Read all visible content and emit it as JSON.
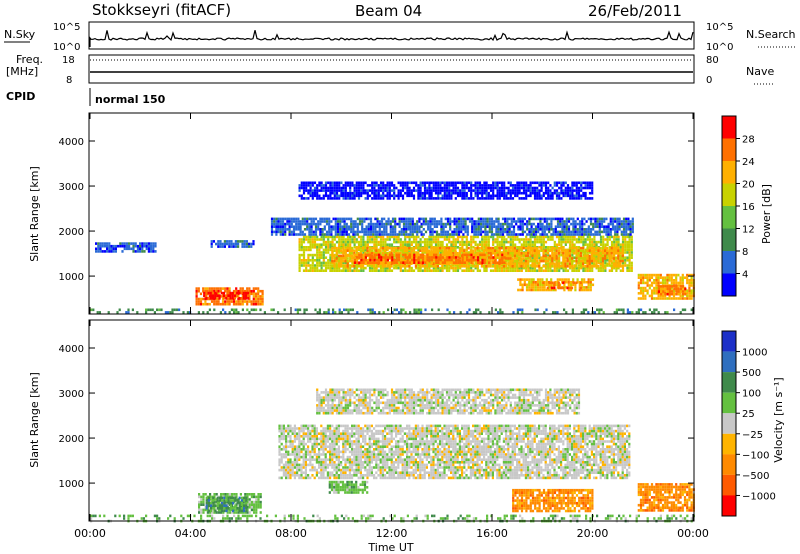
{
  "header": {
    "station": "Stokkseyri (fitACF)",
    "beam": "Beam 04",
    "date": "26/Feb/2011"
  },
  "strip_labels": {
    "nsky": "N.Sky",
    "nsearch": "N.Search",
    "freq": "Freq.",
    "freq_unit": "[MHz]",
    "nave": "Nave",
    "cpid": "CPID",
    "cpid_value": "normal 150",
    "nsky_ticks": [
      "10^5",
      "10^0"
    ],
    "nsearch_ticks": [
      "10^5",
      "10^0"
    ],
    "freq_ticks": [
      "18",
      "8"
    ],
    "nave_ticks": [
      "80",
      "0"
    ]
  },
  "colors": {
    "power": [
      "#0000ff",
      "#2a6ad6",
      "#3f8a4b",
      "#64c040",
      "#c8d200",
      "#ffb000",
      "#ff7000",
      "#ff0000"
    ],
    "velocity": [
      "#1c30c8",
      "#2f6fbf",
      "#3f8a4b",
      "#64c040",
      "#c8c8c8",
      "#ffb400",
      "#ff8a00",
      "#ff5a00",
      "#ff0000"
    ],
    "ground": "#bebeb4"
  },
  "chart_data": [
    {
      "type": "heatmap",
      "panel": "power",
      "xlabel": "",
      "ylabel": "Slant Range [km]",
      "xlim": [
        0,
        24
      ],
      "ylim": [
        180,
        4600
      ],
      "yticks": [
        "1000",
        "2000",
        "3000",
        "4000"
      ],
      "colorbar": {
        "label": "Power [dB]",
        "ticks": [
          "4",
          "8",
          "12",
          "16",
          "20",
          "24",
          "28"
        ]
      },
      "patches": [
        {
          "x0": 4.2,
          "x1": 6.9,
          "r0": 400,
          "r1": 750,
          "level": 6
        },
        {
          "x0": 4.5,
          "x1": 6.3,
          "r0": 480,
          "r1": 650,
          "level": 7
        },
        {
          "x0": 8.3,
          "x1": 21.6,
          "r0": 1100,
          "r1": 1900,
          "level": 4
        },
        {
          "x0": 9.6,
          "x1": 21.2,
          "r0": 1200,
          "r1": 1650,
          "level": 5
        },
        {
          "x0": 10.5,
          "x1": 16.5,
          "r0": 1300,
          "r1": 1500,
          "level": 6
        },
        {
          "x0": 7.2,
          "x1": 21.6,
          "r0": 1900,
          "r1": 2300,
          "level": 1
        },
        {
          "x0": 8.3,
          "x1": 20.0,
          "r0": 2700,
          "r1": 3100,
          "level": 0
        },
        {
          "x0": 17.0,
          "x1": 20.0,
          "r0": 700,
          "r1": 950,
          "level": 5
        },
        {
          "x0": 18.0,
          "x1": 19.5,
          "r0": 750,
          "r1": 880,
          "level": 6
        },
        {
          "x0": 21.8,
          "x1": 24.0,
          "r0": 520,
          "r1": 1050,
          "level": 5
        },
        {
          "x0": 22.6,
          "x1": 23.7,
          "r0": 600,
          "r1": 800,
          "level": 6
        },
        {
          "x0": 0.2,
          "x1": 2.6,
          "r0": 1550,
          "r1": 1750,
          "level": 1
        },
        {
          "x0": 4.8,
          "x1": 6.5,
          "r0": 1650,
          "r1": 1800,
          "level": 1
        },
        {
          "x0": 0.0,
          "x1": 24.0,
          "r0": 180,
          "r1": 280,
          "level": 2
        }
      ]
    },
    {
      "type": "heatmap",
      "panel": "velocity",
      "xlabel": "Time UT",
      "ylabel": "Slant Range [km]",
      "xlim": [
        0,
        24
      ],
      "ylim": [
        180,
        4600
      ],
      "xticks": [
        "00:00",
        "04:00",
        "08:00",
        "12:00",
        "16:00",
        "20:00",
        "00:00"
      ],
      "yticks": [
        "1000",
        "2000",
        "3000",
        "4000"
      ],
      "colorbar": {
        "label": "Velocity [m s⁻¹]",
        "ticks": [
          "1000",
          "500",
          "100",
          "25",
          "−25",
          "−100",
          "−500",
          "−1000"
        ]
      },
      "patches": [
        {
          "x0": 4.3,
          "x1": 6.8,
          "r0": 350,
          "r1": 780,
          "level": 3
        },
        {
          "x0": 4.6,
          "x1": 6.2,
          "r0": 400,
          "r1": 700,
          "level": 2
        },
        {
          "x0": 9.5,
          "x1": 11.0,
          "r0": 800,
          "r1": 1050,
          "level": 3
        },
        {
          "x0": 7.5,
          "x1": 21.5,
          "r0": 1100,
          "r1": 2300,
          "level": 4
        },
        {
          "x0": 9.0,
          "x1": 19.5,
          "r0": 2550,
          "r1": 3100,
          "level": 4
        },
        {
          "x0": 16.8,
          "x1": 20.0,
          "r0": 380,
          "r1": 870,
          "level": 6
        },
        {
          "x0": 21.8,
          "x1": 24.0,
          "r0": 380,
          "r1": 1000,
          "level": 6
        },
        {
          "x0": 0.0,
          "x1": 24.0,
          "r0": 180,
          "r1": 300,
          "level": 3
        }
      ]
    }
  ]
}
